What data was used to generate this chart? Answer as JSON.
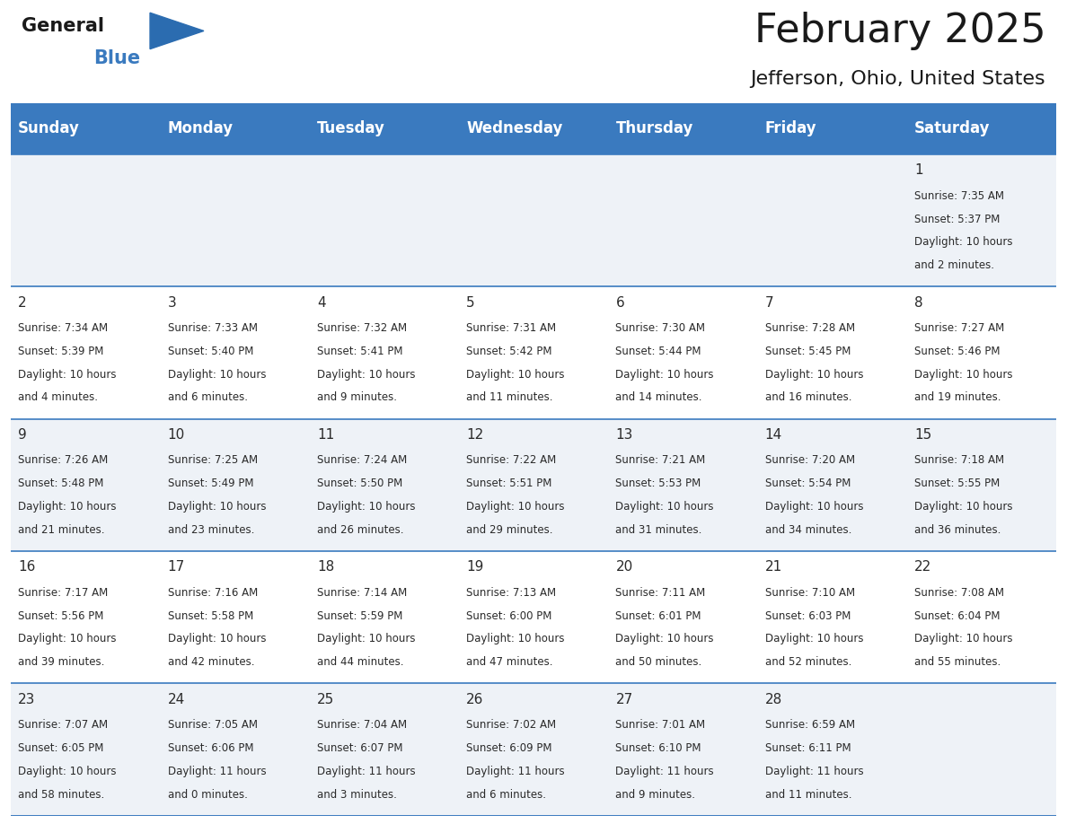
{
  "title": "February 2025",
  "subtitle": "Jefferson, Ohio, United States",
  "header_color": "#3a7abf",
  "header_text_color": "#ffffff",
  "cell_bg_row0": "#eef2f7",
  "cell_bg_row1": "#ffffff",
  "cell_bg_row2": "#eef2f7",
  "cell_bg_row3": "#ffffff",
  "cell_bg_row4": "#eef2f7",
  "day_headers": [
    "Sunday",
    "Monday",
    "Tuesday",
    "Wednesday",
    "Thursday",
    "Friday",
    "Saturday"
  ],
  "title_fontsize": 32,
  "subtitle_fontsize": 16,
  "header_fontsize": 12,
  "day_num_fontsize": 11,
  "info_fontsize": 8.5,
  "days": [
    {
      "day": 1,
      "col": 6,
      "row": 0,
      "sunrise": "7:35 AM",
      "sunset": "5:37 PM",
      "daylight_hours": "10 hours",
      "daylight_mins": "and 2 minutes."
    },
    {
      "day": 2,
      "col": 0,
      "row": 1,
      "sunrise": "7:34 AM",
      "sunset": "5:39 PM",
      "daylight_hours": "10 hours",
      "daylight_mins": "and 4 minutes."
    },
    {
      "day": 3,
      "col": 1,
      "row": 1,
      "sunrise": "7:33 AM",
      "sunset": "5:40 PM",
      "daylight_hours": "10 hours",
      "daylight_mins": "and 6 minutes."
    },
    {
      "day": 4,
      "col": 2,
      "row": 1,
      "sunrise": "7:32 AM",
      "sunset": "5:41 PM",
      "daylight_hours": "10 hours",
      "daylight_mins": "and 9 minutes."
    },
    {
      "day": 5,
      "col": 3,
      "row": 1,
      "sunrise": "7:31 AM",
      "sunset": "5:42 PM",
      "daylight_hours": "10 hours",
      "daylight_mins": "and 11 minutes."
    },
    {
      "day": 6,
      "col": 4,
      "row": 1,
      "sunrise": "7:30 AM",
      "sunset": "5:44 PM",
      "daylight_hours": "10 hours",
      "daylight_mins": "and 14 minutes."
    },
    {
      "day": 7,
      "col": 5,
      "row": 1,
      "sunrise": "7:28 AM",
      "sunset": "5:45 PM",
      "daylight_hours": "10 hours",
      "daylight_mins": "and 16 minutes."
    },
    {
      "day": 8,
      "col": 6,
      "row": 1,
      "sunrise": "7:27 AM",
      "sunset": "5:46 PM",
      "daylight_hours": "10 hours",
      "daylight_mins": "and 19 minutes."
    },
    {
      "day": 9,
      "col": 0,
      "row": 2,
      "sunrise": "7:26 AM",
      "sunset": "5:48 PM",
      "daylight_hours": "10 hours",
      "daylight_mins": "and 21 minutes."
    },
    {
      "day": 10,
      "col": 1,
      "row": 2,
      "sunrise": "7:25 AM",
      "sunset": "5:49 PM",
      "daylight_hours": "10 hours",
      "daylight_mins": "and 23 minutes."
    },
    {
      "day": 11,
      "col": 2,
      "row": 2,
      "sunrise": "7:24 AM",
      "sunset": "5:50 PM",
      "daylight_hours": "10 hours",
      "daylight_mins": "and 26 minutes."
    },
    {
      "day": 12,
      "col": 3,
      "row": 2,
      "sunrise": "7:22 AM",
      "sunset": "5:51 PM",
      "daylight_hours": "10 hours",
      "daylight_mins": "and 29 minutes."
    },
    {
      "day": 13,
      "col": 4,
      "row": 2,
      "sunrise": "7:21 AM",
      "sunset": "5:53 PM",
      "daylight_hours": "10 hours",
      "daylight_mins": "and 31 minutes."
    },
    {
      "day": 14,
      "col": 5,
      "row": 2,
      "sunrise": "7:20 AM",
      "sunset": "5:54 PM",
      "daylight_hours": "10 hours",
      "daylight_mins": "and 34 minutes."
    },
    {
      "day": 15,
      "col": 6,
      "row": 2,
      "sunrise": "7:18 AM",
      "sunset": "5:55 PM",
      "daylight_hours": "10 hours",
      "daylight_mins": "and 36 minutes."
    },
    {
      "day": 16,
      "col": 0,
      "row": 3,
      "sunrise": "7:17 AM",
      "sunset": "5:56 PM",
      "daylight_hours": "10 hours",
      "daylight_mins": "and 39 minutes."
    },
    {
      "day": 17,
      "col": 1,
      "row": 3,
      "sunrise": "7:16 AM",
      "sunset": "5:58 PM",
      "daylight_hours": "10 hours",
      "daylight_mins": "and 42 minutes."
    },
    {
      "day": 18,
      "col": 2,
      "row": 3,
      "sunrise": "7:14 AM",
      "sunset": "5:59 PM",
      "daylight_hours": "10 hours",
      "daylight_mins": "and 44 minutes."
    },
    {
      "day": 19,
      "col": 3,
      "row": 3,
      "sunrise": "7:13 AM",
      "sunset": "6:00 PM",
      "daylight_hours": "10 hours",
      "daylight_mins": "and 47 minutes."
    },
    {
      "day": 20,
      "col": 4,
      "row": 3,
      "sunrise": "7:11 AM",
      "sunset": "6:01 PM",
      "daylight_hours": "10 hours",
      "daylight_mins": "and 50 minutes."
    },
    {
      "day": 21,
      "col": 5,
      "row": 3,
      "sunrise": "7:10 AM",
      "sunset": "6:03 PM",
      "daylight_hours": "10 hours",
      "daylight_mins": "and 52 minutes."
    },
    {
      "day": 22,
      "col": 6,
      "row": 3,
      "sunrise": "7:08 AM",
      "sunset": "6:04 PM",
      "daylight_hours": "10 hours",
      "daylight_mins": "and 55 minutes."
    },
    {
      "day": 23,
      "col": 0,
      "row": 4,
      "sunrise": "7:07 AM",
      "sunset": "6:05 PM",
      "daylight_hours": "10 hours",
      "daylight_mins": "and 58 minutes."
    },
    {
      "day": 24,
      "col": 1,
      "row": 4,
      "sunrise": "7:05 AM",
      "sunset": "6:06 PM",
      "daylight_hours": "11 hours",
      "daylight_mins": "and 0 minutes."
    },
    {
      "day": 25,
      "col": 2,
      "row": 4,
      "sunrise": "7:04 AM",
      "sunset": "6:07 PM",
      "daylight_hours": "11 hours",
      "daylight_mins": "and 3 minutes."
    },
    {
      "day": 26,
      "col": 3,
      "row": 4,
      "sunrise": "7:02 AM",
      "sunset": "6:09 PM",
      "daylight_hours": "11 hours",
      "daylight_mins": "and 6 minutes."
    },
    {
      "day": 27,
      "col": 4,
      "row": 4,
      "sunrise": "7:01 AM",
      "sunset": "6:10 PM",
      "daylight_hours": "11 hours",
      "daylight_mins": "and 9 minutes."
    },
    {
      "day": 28,
      "col": 5,
      "row": 4,
      "sunrise": "6:59 AM",
      "sunset": "6:11 PM",
      "daylight_hours": "11 hours",
      "daylight_mins": "and 11 minutes."
    }
  ]
}
